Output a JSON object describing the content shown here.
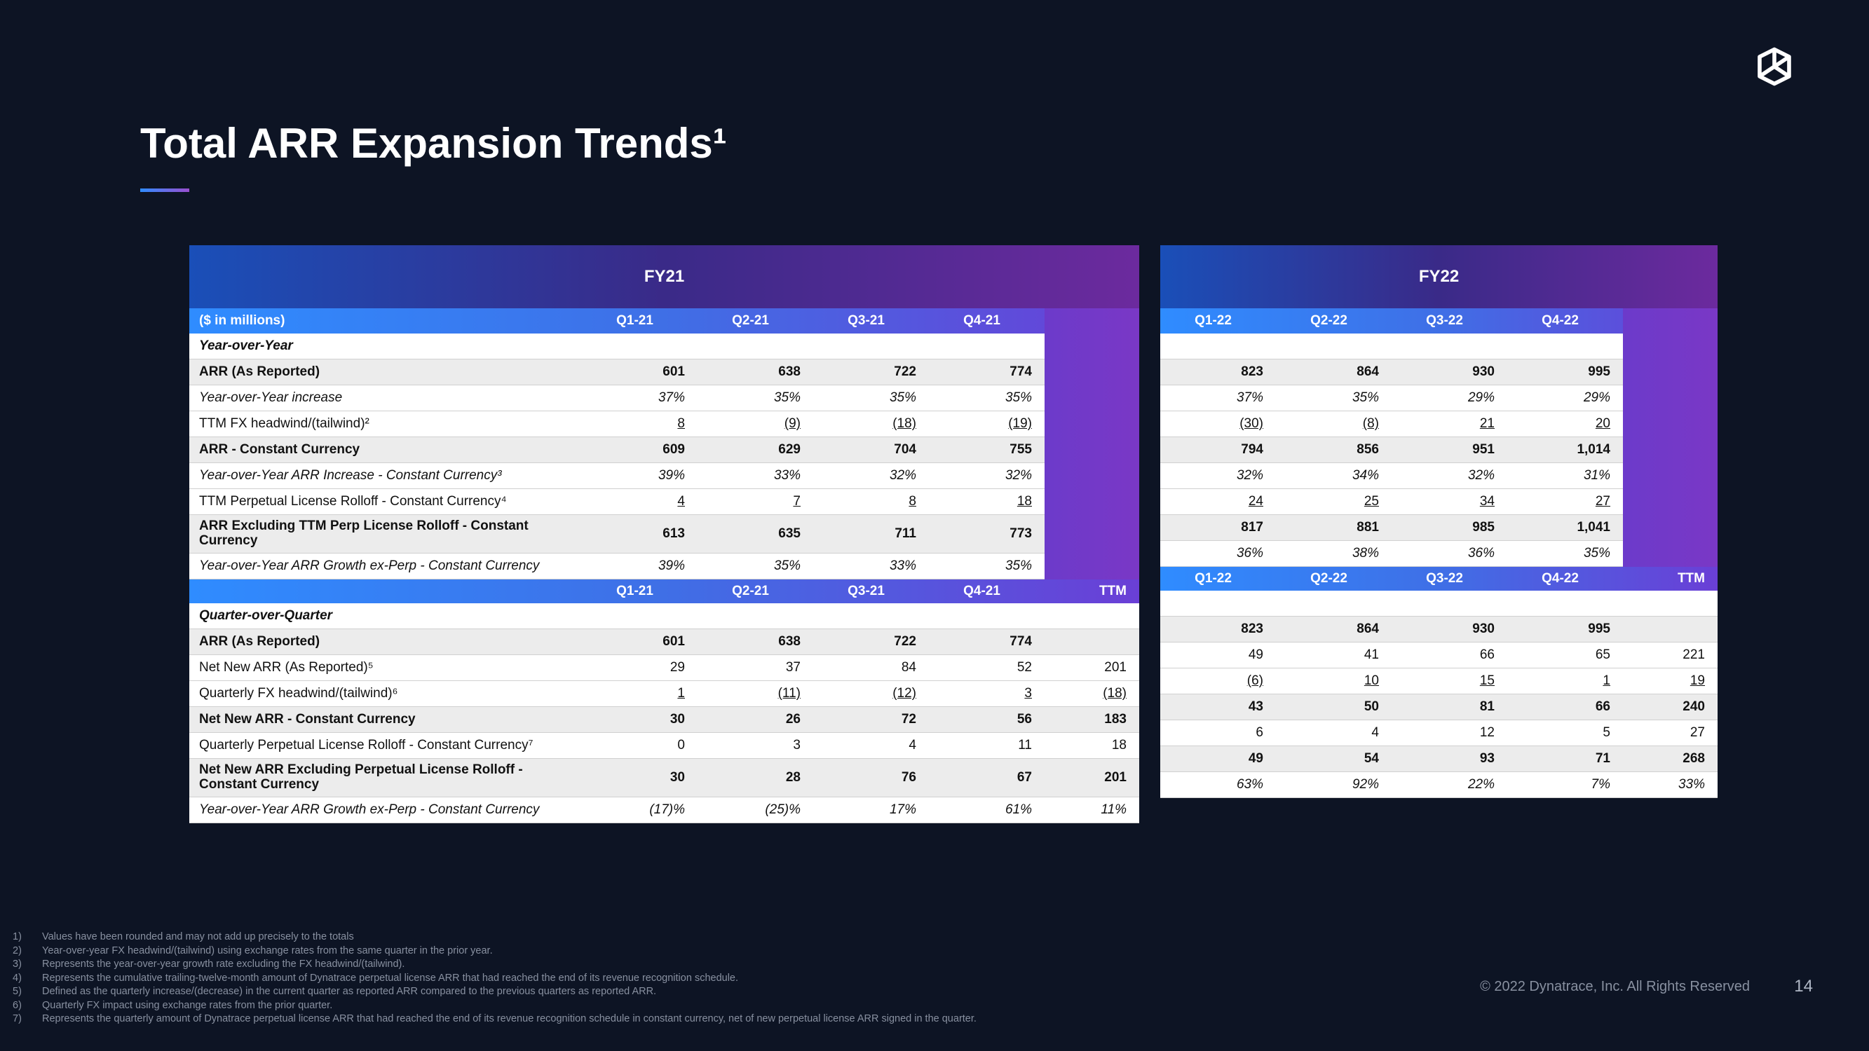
{
  "title": "Total ARR Expansion Trends¹",
  "copyright": "© 2022 Dynatrace, Inc. All Rights Reserved",
  "page": "14",
  "fy": {
    "left": "FY21",
    "right": "FY22"
  },
  "colLabel": "($ in millions)",
  "ttm": "TTM",
  "q": {
    "l": [
      "Q1-21",
      "Q2-21",
      "Q3-21",
      "Q4-21"
    ],
    "r": [
      "Q1-22",
      "Q2-22",
      "Q3-22",
      "Q4-22"
    ]
  },
  "sections": {
    "yoy": "Year-over-Year",
    "qoq": "Quarter-over-Quarter"
  },
  "rowsA": [
    {
      "k": "r0",
      "label": "ARR (As Reported)",
      "b": true,
      "gr": true,
      "l": [
        "601",
        "638",
        "722",
        "774"
      ],
      "r": [
        "823",
        "864",
        "930",
        "995"
      ]
    },
    {
      "k": "r1",
      "label": "Year-over-Year increase",
      "it": true,
      "l": [
        "37%",
        "35%",
        "35%",
        "35%"
      ],
      "r": [
        "37%",
        "35%",
        "29%",
        "29%"
      ]
    },
    {
      "k": "r2",
      "label": "TTM FX headwind/(tailwind)²",
      "l": [
        "8",
        "(9)",
        "(18)",
        "(19)"
      ],
      "r": [
        "(30)",
        "(8)",
        "21",
        "20"
      ],
      "ul": true
    },
    {
      "k": "r3",
      "label": "ARR - Constant Currency",
      "b": true,
      "gr": true,
      "l": [
        "609",
        "629",
        "704",
        "755"
      ],
      "r": [
        "794",
        "856",
        "951",
        "1,014"
      ]
    },
    {
      "k": "r4",
      "label": "Year-over-Year ARR Increase - Constant Currency³",
      "it": true,
      "l": [
        "39%",
        "33%",
        "32%",
        "32%"
      ],
      "r": [
        "32%",
        "34%",
        "32%",
        "31%"
      ]
    },
    {
      "k": "r5",
      "label": "TTM Perpetual License Rolloff - Constant Currency⁴",
      "l": [
        "4",
        "7",
        "8",
        "18"
      ],
      "r": [
        "24",
        "25",
        "34",
        "27"
      ],
      "ul": true
    },
    {
      "k": "r6",
      "label": "ARR Excluding TTM Perp License Rolloff - Constant Currency",
      "b": true,
      "gr": true,
      "ml": true,
      "l": [
        "613",
        "635",
        "711",
        "773"
      ],
      "r": [
        "817",
        "881",
        "985",
        "1,041"
      ]
    },
    {
      "k": "r7",
      "label": "Year-over-Year ARR Growth ex-Perp - Constant Currency",
      "it": true,
      "l": [
        "39%",
        "35%",
        "33%",
        "35%"
      ],
      "r": [
        "36%",
        "38%",
        "36%",
        "35%"
      ]
    }
  ],
  "rowsB": [
    {
      "k": "b0",
      "label": "ARR (As Reported)",
      "b": true,
      "gr": true,
      "l": [
        "601",
        "638",
        "722",
        "774",
        ""
      ],
      "r": [
        "823",
        "864",
        "930",
        "995",
        ""
      ]
    },
    {
      "k": "b1",
      "label": "Net New ARR (As Reported)⁵",
      "l": [
        "29",
        "37",
        "84",
        "52",
        "201"
      ],
      "r": [
        "49",
        "41",
        "66",
        "65",
        "221"
      ]
    },
    {
      "k": "b2",
      "label": "Quarterly FX headwind/(tailwind)⁶",
      "l": [
        "1",
        "(11)",
        "(12)",
        "3",
        "(18)"
      ],
      "r": [
        "(6)",
        "10",
        "15",
        "1",
        "19"
      ],
      "ul": true
    },
    {
      "k": "b3",
      "label": "Net New ARR - Constant Currency",
      "b": true,
      "gr": true,
      "l": [
        "30",
        "26",
        "72",
        "56",
        "183"
      ],
      "r": [
        "43",
        "50",
        "81",
        "66",
        "240"
      ]
    },
    {
      "k": "b4",
      "label": "Quarterly Perpetual License Rolloff - Constant Currency⁷",
      "l": [
        "0",
        "3",
        "4",
        "11",
        "18"
      ],
      "r": [
        "6",
        "4",
        "12",
        "5",
        "27"
      ]
    },
    {
      "k": "b5",
      "label": "Net New ARR Excluding Perpetual License Rolloff - Constant Currency",
      "b": true,
      "gr": true,
      "ml": true,
      "l": [
        "30",
        "28",
        "76",
        "67",
        "201"
      ],
      "r": [
        "49",
        "54",
        "93",
        "71",
        "268"
      ]
    },
    {
      "k": "b6",
      "label": "Year-over-Year ARR Growth ex-Perp - Constant Currency",
      "it": true,
      "l": [
        "(17)%",
        "(25)%",
        "17%",
        "61%",
        "11%"
      ],
      "r": [
        "63%",
        "92%",
        "22%",
        "7%",
        "33%"
      ]
    }
  ],
  "footnotes": [
    "Values have been rounded and may not add up precisely to the totals",
    "Year-over-year FX headwind/(tailwind) using exchange rates from the same quarter in the prior year.",
    "Represents the year-over-year growth rate excluding the FX headwind/(tailwind).",
    "Represents the cumulative trailing-twelve-month amount of Dynatrace perpetual license ARR that had reached the end of its revenue recognition schedule.",
    "Defined as the quarterly increase/(decrease) in the current quarter as reported ARR compared to the previous quarters as reported ARR.",
    "Quarterly FX impact using exchange rates from the prior quarter.",
    "Represents the quarterly amount of Dynatrace perpetual license ARR that had reached the end of its revenue recognition schedule in constant currency, net of new perpetual license ARR signed in the quarter."
  ]
}
